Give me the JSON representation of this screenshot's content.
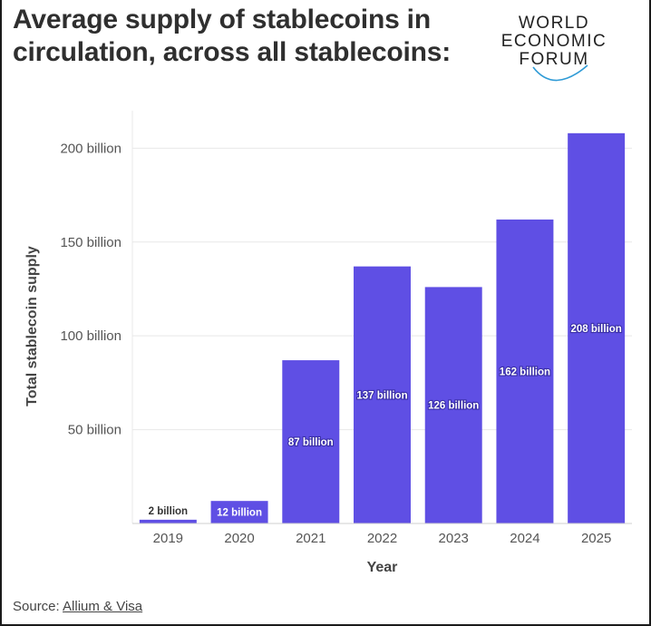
{
  "title": "Average supply of stablecoins in circulation, across all stablecoins:",
  "logo": {
    "lines": [
      "WORLD",
      "ECONOMIC",
      "FORUM"
    ],
    "accent_color": "#2f9bd6"
  },
  "source": {
    "prefix": "Source:",
    "link_text": "Allium & Visa"
  },
  "colors": {
    "bar": "#5f4fe4",
    "grid": "#e8e8e8",
    "axis_text": "#555555",
    "label_text": "#ffffff",
    "outside_label_text": "#333333"
  },
  "chart_data": {
    "type": "bar",
    "categories": [
      "2019",
      "2020",
      "2021",
      "2022",
      "2023",
      "2024",
      "2025"
    ],
    "values": [
      2,
      12,
      87,
      137,
      126,
      162,
      208
    ],
    "data_labels": [
      "2 billion",
      "12 billion",
      "87 billion",
      "137 billion",
      "126 billion",
      "162 billion",
      "208 billion"
    ],
    "xlabel": "Year",
    "ylabel": "Total stablecoin supply",
    "ylim": [
      0,
      220
    ],
    "yticks": [
      50,
      100,
      150,
      200
    ],
    "ytick_labels": [
      "50 billion",
      "100 billion",
      "150 billion",
      "200 billion"
    ],
    "unit": "billion",
    "grid": true,
    "legend": "none"
  }
}
